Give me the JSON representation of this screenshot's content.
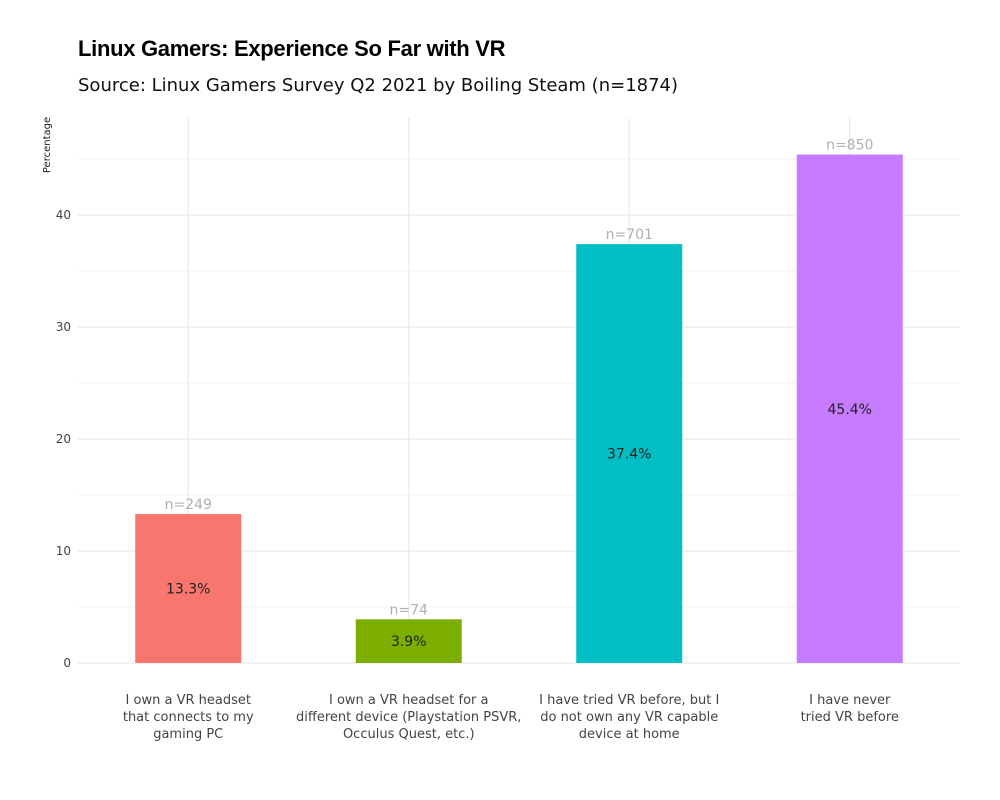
{
  "chart_data": {
    "type": "bar",
    "title": "Linux Gamers: Experience So Far with VR",
    "subtitle": "Source: Linux Gamers Survey Q2 2021 by Boiling Steam (n=1874)",
    "ylabel": "Percentage",
    "xlabel": "",
    "ylim": [
      0,
      48
    ],
    "yticks": [
      0,
      10,
      20,
      30,
      40
    ],
    "grid": true,
    "legend": "none",
    "categories": [
      [
        "I own a VR headset",
        "that connects to my",
        "gaming PC"
      ],
      [
        "I own a VR headset for a",
        "different device (Playstation PSVR,",
        "Occulus Quest, etc.)"
      ],
      [
        "I have tried VR before, but I",
        "do not own any VR capable",
        "device at home"
      ],
      [
        "I have never",
        "tried VR before"
      ]
    ],
    "values": [
      13.3,
      3.9,
      37.4,
      45.4
    ],
    "value_labels": [
      "13.3%",
      "3.9%",
      "37.4%",
      "45.4%"
    ],
    "counts": [
      "n=249",
      "n=74",
      "n=701",
      "n=850"
    ],
    "colors": [
      "#F8766D",
      "#7CAE00",
      "#00BFC4",
      "#C77CFF"
    ]
  }
}
